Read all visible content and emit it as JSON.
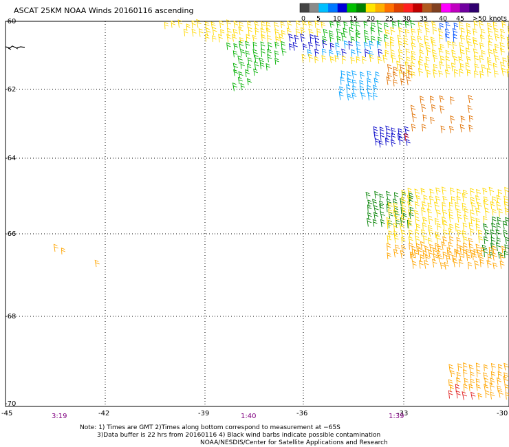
{
  "title": "ASCAT 25KM NOAA Winds 20160116 ascending",
  "legend": {
    "labels": [
      "0",
      "5",
      "10",
      "15",
      "20",
      "25",
      "30",
      "35",
      "40",
      "45",
      ">50"
    ],
    "unit": "knots",
    "colors": [
      "#444444",
      "#8a8a8a",
      "#00bfff",
      "#0078ff",
      "#0000d8",
      "#00c000",
      "#008000",
      "#ffe600",
      "#ffb000",
      "#ff7000",
      "#e04000",
      "#ff2020",
      "#c00000",
      "#b05a20",
      "#804020",
      "#ff00ff",
      "#c000c0",
      "#7000a0",
      "#300070"
    ]
  },
  "map": {
    "lat_ticks": [
      "-60",
      "-62",
      "-64",
      "-66",
      "-68",
      "-70"
    ],
    "lon_ticks": [
      "-45",
      "-42",
      "-39",
      "-36",
      "-33",
      "-30"
    ],
    "pass_times": [
      "3:19",
      "1:40",
      "1:39"
    ]
  },
  "notes": {
    "line1": "Note: 1) Times are GMT 2)Times along bottom correspond to measurement at −65S",
    "line2": "3)Data buffer is 22 hrs from 20160116 4) Black wind barbs indicate possible contamination",
    "line3": "NOAA/NESDIS/Center for Satellite Applications and Research"
  }
}
